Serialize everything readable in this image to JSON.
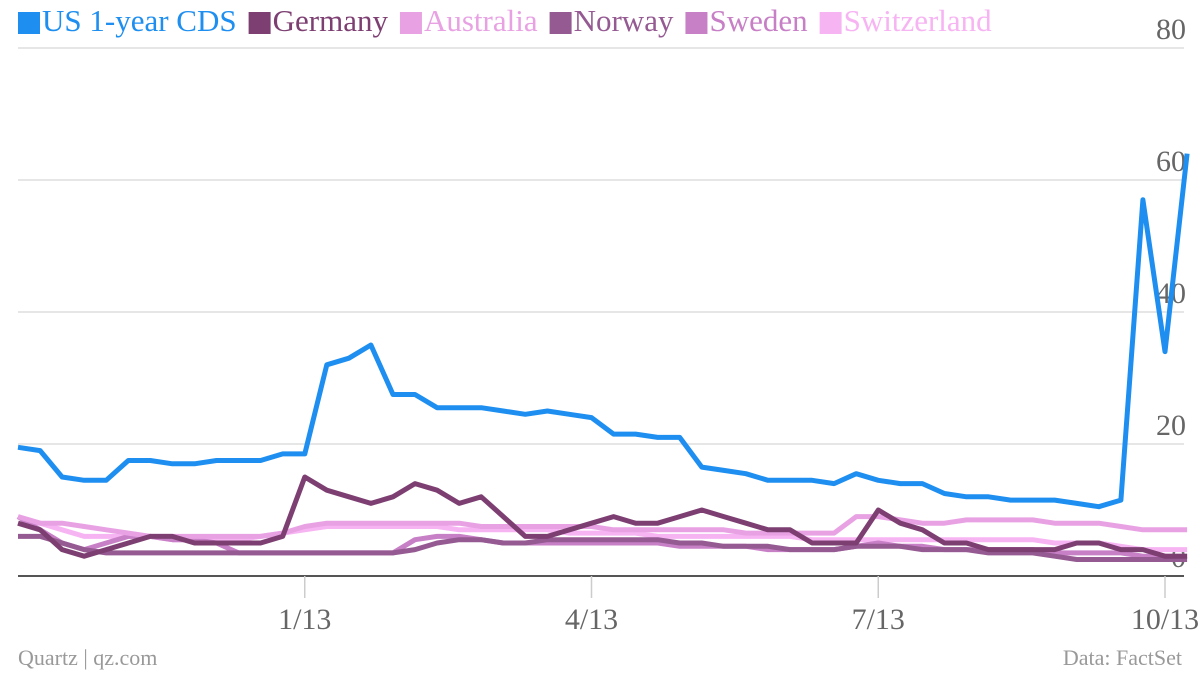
{
  "chart_data": {
    "type": "line",
    "x": [
      null,
      null,
      null,
      null,
      null,
      null,
      null,
      null,
      null,
      null,
      null,
      null,
      null,
      "1/13",
      null,
      null,
      null,
      null,
      null,
      null,
      null,
      null,
      null,
      null,
      null,
      null,
      "4/13",
      null,
      null,
      null,
      null,
      null,
      null,
      null,
      null,
      null,
      null,
      null,
      null,
      "7/13",
      null,
      null,
      null,
      null,
      null,
      null,
      null,
      null,
      null,
      null,
      null,
      null,
      "10/13",
      null
    ],
    "series": [
      {
        "name": "US 1-year CDS",
        "color": "#1e8ff0",
        "values": [
          19.5,
          19,
          15,
          14.5,
          14.5,
          17.5,
          17.5,
          17,
          17,
          17.5,
          17.5,
          17.5,
          18.5,
          18.5,
          32,
          33,
          35,
          27.5,
          27.5,
          25.5,
          25.5,
          25.5,
          25,
          24.5,
          25,
          24.5,
          24,
          21.5,
          21.5,
          21,
          21,
          16.5,
          16,
          15.5,
          14.5,
          14.5,
          14.5,
          14,
          15.5,
          14.5,
          14,
          14,
          12.5,
          12,
          12,
          11.5,
          11.5,
          11.5,
          11,
          10.5,
          11.5,
          57,
          34,
          64
        ]
      },
      {
        "name": "Germany",
        "color": "#7d3f72",
        "values": [
          8,
          7,
          4,
          3,
          4,
          5,
          6,
          6,
          5,
          5,
          5,
          5,
          6,
          15,
          13,
          12,
          11,
          12,
          14,
          13,
          11,
          12,
          9,
          6,
          6,
          7,
          8,
          9,
          8,
          8,
          9,
          10,
          9,
          8,
          7,
          7,
          5,
          5,
          5,
          10,
          8,
          7,
          5,
          5,
          4,
          4,
          4,
          4,
          5,
          5,
          4,
          4,
          3,
          3
        ]
      },
      {
        "name": "Australia",
        "color": "#e8a2e4",
        "values": [
          9,
          8,
          8,
          7.5,
          7,
          6.5,
          6,
          6,
          6,
          6,
          6,
          6,
          6.5,
          7.5,
          8,
          8,
          8,
          8,
          8,
          8,
          8,
          7.5,
          7.5,
          7.5,
          7.5,
          7.5,
          7.5,
          7,
          7,
          7,
          7,
          7,
          7,
          6.5,
          6.5,
          6.5,
          6.5,
          6.5,
          9,
          9,
          8.5,
          8,
          8,
          8.5,
          8.5,
          8.5,
          8.5,
          8,
          8,
          8,
          7.5,
          7,
          7,
          7
        ]
      },
      {
        "name": "Norway",
        "color": "#955a92",
        "values": [
          6,
          6,
          5,
          4,
          3.5,
          3.5,
          3.5,
          3.5,
          3.5,
          3.5,
          3.5,
          3.5,
          3.5,
          3.5,
          3.5,
          3.5,
          3.5,
          3.5,
          4,
          5,
          5.5,
          5.5,
          5,
          5,
          5.5,
          5.5,
          5.5,
          5.5,
          5.5,
          5.5,
          5,
          5,
          4.5,
          4.5,
          4.5,
          4,
          4,
          4,
          4.5,
          4.5,
          4.5,
          4,
          4,
          4,
          3.5,
          3.5,
          3.5,
          3,
          2.5,
          2.5,
          2.5,
          2.5,
          2.5,
          2.5
        ]
      },
      {
        "name": "Sweden",
        "color": "#c77fc6",
        "values": [
          9,
          7,
          5,
          4,
          5,
          6,
          6,
          5.5,
          5.5,
          5,
          3.5,
          3.5,
          3.5,
          3.5,
          3.5,
          3.5,
          3.5,
          3.5,
          5.5,
          6,
          6,
          5.5,
          5,
          5,
          5,
          5,
          5,
          5,
          5,
          5,
          4.5,
          4.5,
          4.5,
          4.5,
          4,
          4,
          4,
          4,
          4.5,
          5,
          4.5,
          4.5,
          4,
          4,
          4,
          4,
          4,
          3.5,
          3.5,
          3.5,
          3.5,
          3,
          3,
          3
        ]
      },
      {
        "name": "Switzerland",
        "color": "#f7b4f3",
        "values": [
          9,
          8,
          7,
          6,
          6,
          6,
          6,
          5.5,
          5.5,
          5.5,
          5.5,
          6,
          6.5,
          7,
          7.5,
          7.5,
          7.5,
          7.5,
          7.5,
          7.5,
          7,
          7,
          7,
          7,
          7,
          6.5,
          6.5,
          6.5,
          6.5,
          6,
          6,
          6,
          6,
          6,
          6,
          6,
          5.5,
          5.5,
          5.5,
          5.5,
          5.5,
          5.5,
          5.5,
          5.5,
          5.5,
          5.5,
          5.5,
          5,
          5,
          5,
          4.5,
          4,
          4,
          4
        ]
      }
    ],
    "ylim": [
      0,
      80
    ],
    "yticks": [
      0,
      20,
      40,
      60,
      80
    ],
    "grid": true,
    "source_left": "Quartz | qz.com",
    "source_right": "Data: FactSet"
  }
}
